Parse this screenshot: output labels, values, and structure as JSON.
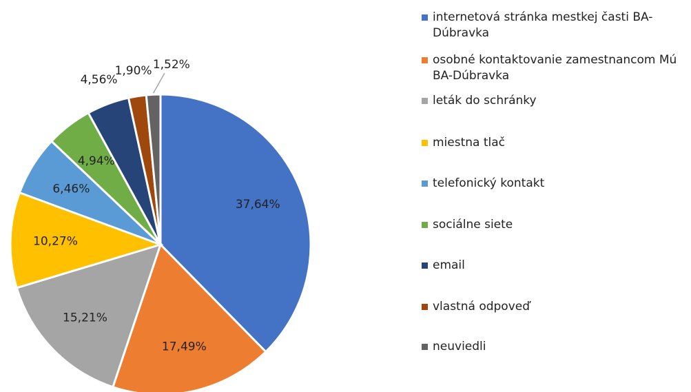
{
  "chart_data": {
    "type": "pie",
    "categories": [
      "internetová stránka mestkej časti BA-Dúbravka",
      "osobné kontaktovanie zamestnancom Mú BA-Dúbravka",
      "leták do schránky",
      "miestna tlač",
      "telefonický kontakt",
      "sociálne siete",
      "email",
      "vlastná odpoveď",
      "neuviedli"
    ],
    "values": [
      37.64,
      17.49,
      15.21,
      10.27,
      6.46,
      4.94,
      4.56,
      1.9,
      1.52
    ],
    "value_labels": [
      "37,64%",
      "17,49%",
      "15,21%",
      "10,27%",
      "6,46%",
      "4,94%",
      "4,56%",
      "1,90%",
      "1,52%"
    ],
    "colors": [
      "#4472c4",
      "#ed7d31",
      "#a5a5a5",
      "#ffc000",
      "#5b9bd5",
      "#70ad47",
      "#264478",
      "#9e480e",
      "#636363"
    ],
    "legend": "right"
  }
}
